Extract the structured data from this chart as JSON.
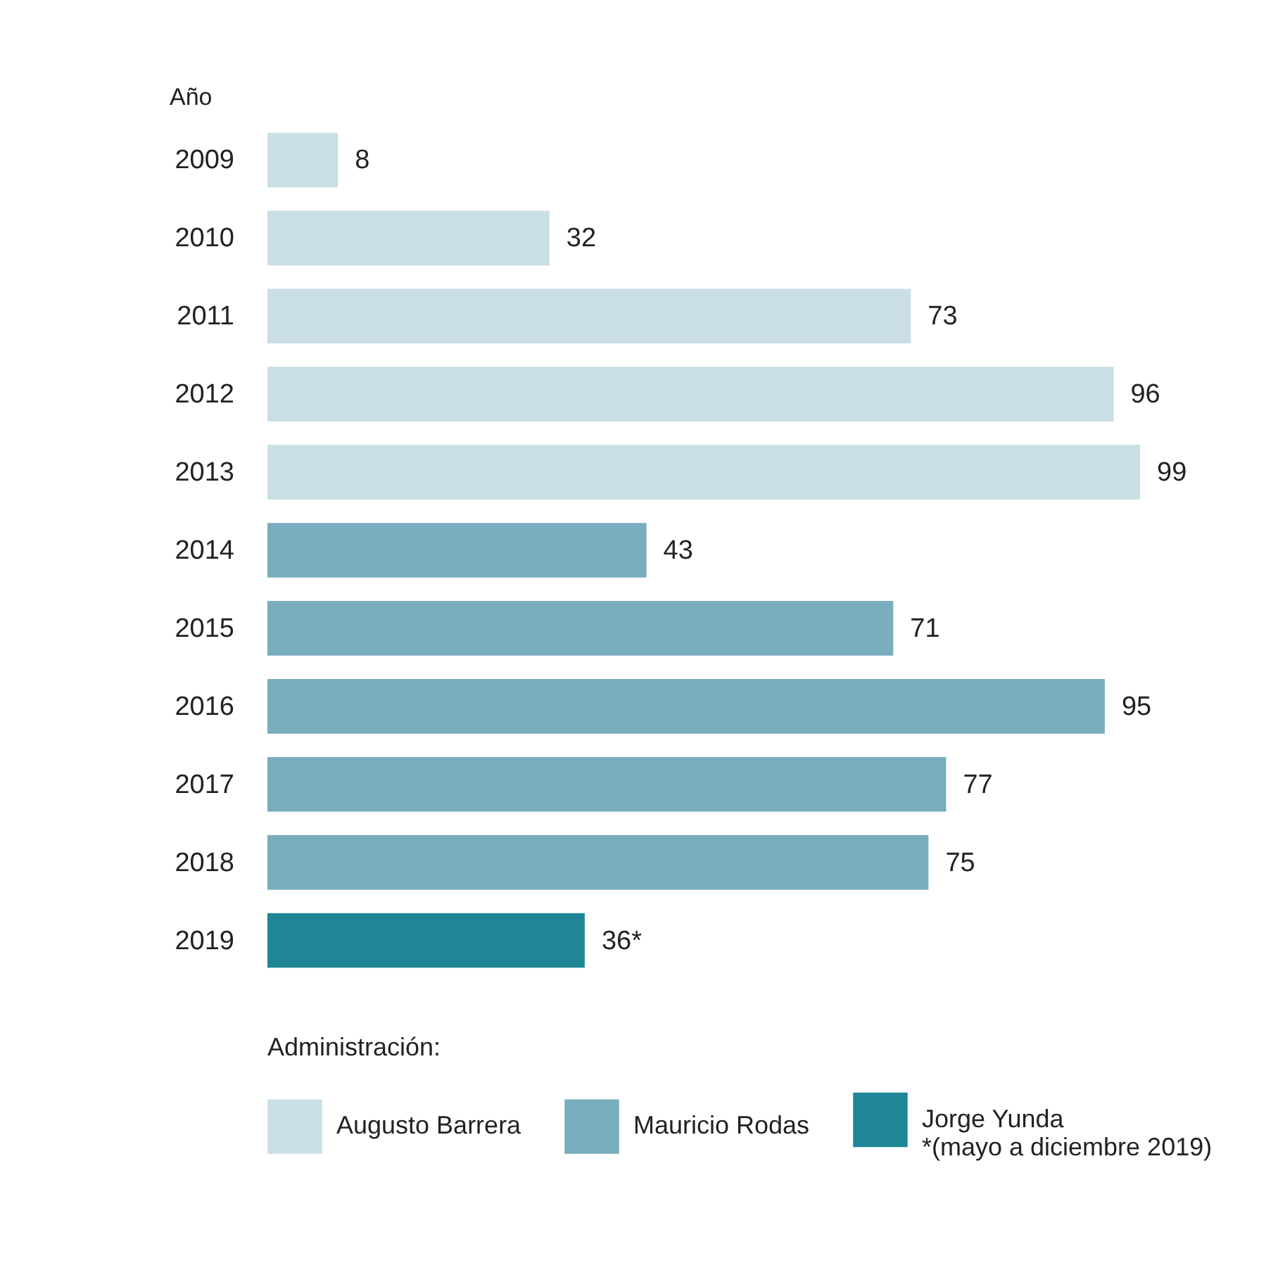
{
  "chart_data": {
    "type": "bar",
    "orientation": "horizontal",
    "ylabel": "Año",
    "legend_title": "Administración:",
    "legend": "bottom",
    "categories": [
      "2009",
      "2010",
      "2011",
      "2012",
      "2013",
      "2014",
      "2015",
      "2016",
      "2017",
      "2018",
      "2019"
    ],
    "series": [
      {
        "name": "Augusto Barrera",
        "color": "#c9dfe5",
        "values": [
          8,
          32,
          73,
          96,
          99,
          null,
          null,
          null,
          null,
          null,
          null
        ],
        "value_labels": [
          "8",
          "32",
          "73",
          "96",
          "99",
          null,
          null,
          null,
          null,
          null,
          null
        ]
      },
      {
        "name": "Mauricio Rodas",
        "color": "#77adbd",
        "values": [
          null,
          null,
          null,
          null,
          null,
          43,
          71,
          95,
          77,
          75,
          null
        ],
        "value_labels": [
          null,
          null,
          null,
          null,
          null,
          "43",
          "71",
          "95",
          "77",
          "75",
          null
        ]
      },
      {
        "name": "Jorge Yunda\n*(mayo a diciembre 2019)",
        "color": "#1f8697",
        "values": [
          null,
          null,
          null,
          null,
          null,
          null,
          null,
          null,
          null,
          null,
          36
        ],
        "value_labels": [
          null,
          null,
          null,
          null,
          null,
          null,
          null,
          null,
          null,
          null,
          "36*"
        ]
      }
    ]
  }
}
